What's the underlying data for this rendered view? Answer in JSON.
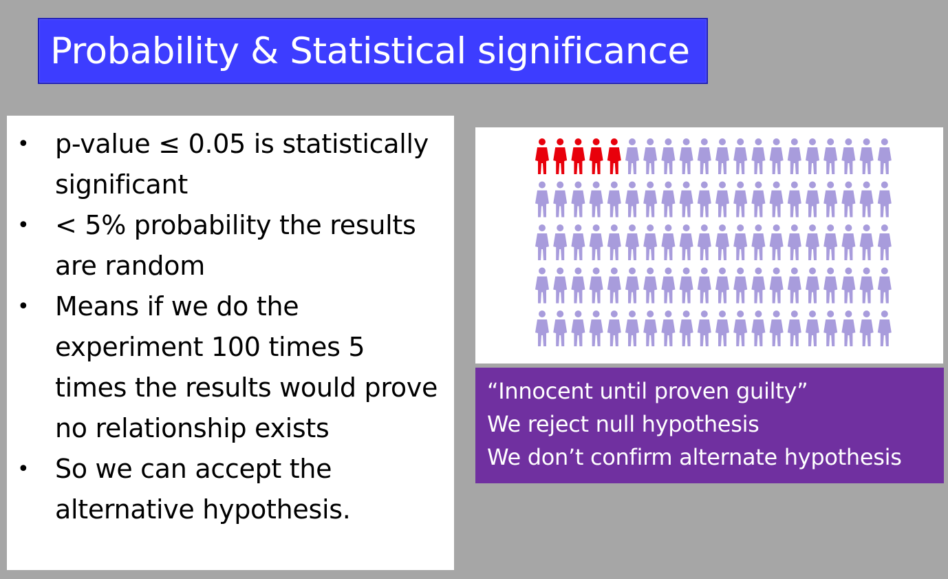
{
  "slide": {
    "title": "Probability & Statistical significance",
    "bullets": [
      "p-value ≤ 0.05 is statistically significant",
      "< 5% probability the results are random",
      "Means if we do the experiment 100 times 5 times the results would prove no relationship exists",
      "So we can accept the alternative hypothesis."
    ],
    "bullet_symbol": "•",
    "illustration": {
      "total_people": 100,
      "highlighted_people": 5,
      "highlight_color": "#e8000b",
      "base_color": "#a89cdc"
    },
    "quote_lines": [
      "“Innocent until proven guilty”",
      "We reject null hypothesis",
      "We don’t confirm alternate hypothesis"
    ]
  },
  "colors": {
    "background": "#a6a6a6",
    "title_fill": "#3d3dff",
    "quote_fill": "#7030a0"
  }
}
